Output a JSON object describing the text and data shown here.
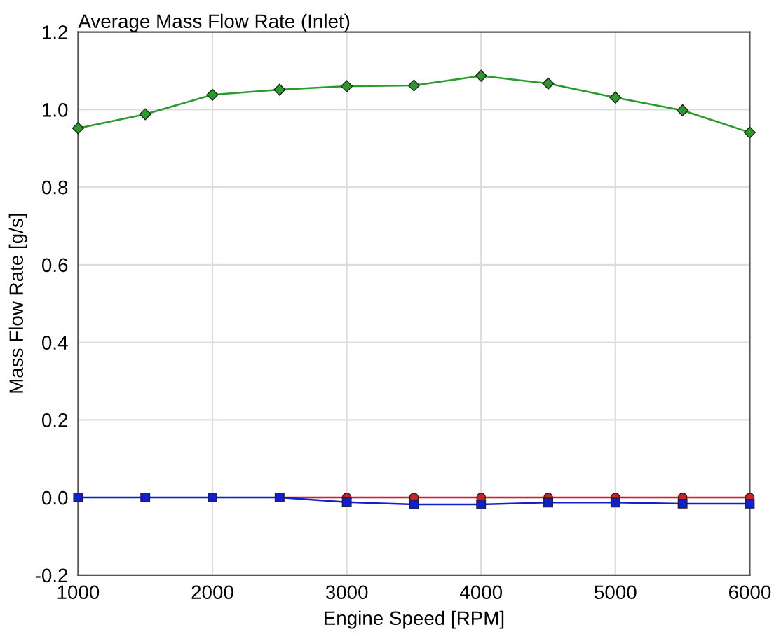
{
  "chart_data": {
    "type": "line",
    "title": "Average Mass Flow Rate (Inlet)",
    "xlabel": "Engine Speed [RPM]",
    "ylabel": "Mass Flow Rate [g/s]",
    "x": [
      1000,
      1500,
      2000,
      2500,
      3000,
      3500,
      4000,
      4500,
      5000,
      5500,
      6000
    ],
    "series": [
      {
        "color": "#d02020",
        "marker": "circle",
        "values": [
          null,
          null,
          null,
          0.0,
          0.0,
          0.0,
          0.0,
          0.0,
          0.0,
          0.0,
          0.0
        ]
      },
      {
        "color": "#1020d0",
        "marker": "square",
        "values": [
          0.0,
          0.0,
          0.0,
          0.0,
          -0.012,
          -0.018,
          -0.018,
          -0.013,
          -0.013,
          -0.016,
          -0.016
        ]
      },
      {
        "color": "#2a9a2a",
        "marker": "diamond",
        "values": [
          0.952,
          0.988,
          1.038,
          1.051,
          1.06,
          1.062,
          1.087,
          1.067,
          1.031,
          0.998,
          0.941
        ]
      }
    ],
    "xlim": [
      1000,
      6000
    ],
    "xticks": [
      1000,
      2000,
      3000,
      4000,
      5000,
      6000
    ],
    "ylim": [
      -0.2,
      1.2
    ],
    "yticks": [
      {
        "value": -0.2,
        "label": "-0.2"
      },
      {
        "value": 0.0,
        "label": "0.0"
      },
      {
        "value": 0.2,
        "label": "0.2"
      },
      {
        "value": 0.4,
        "label": "0.4"
      },
      {
        "value": 0.6,
        "label": "0.6"
      },
      {
        "value": 0.8,
        "label": "0.8"
      },
      {
        "value": 1.0,
        "label": "1.0"
      },
      {
        "value": 1.2,
        "label": "1.2"
      }
    ],
    "grid": true
  }
}
